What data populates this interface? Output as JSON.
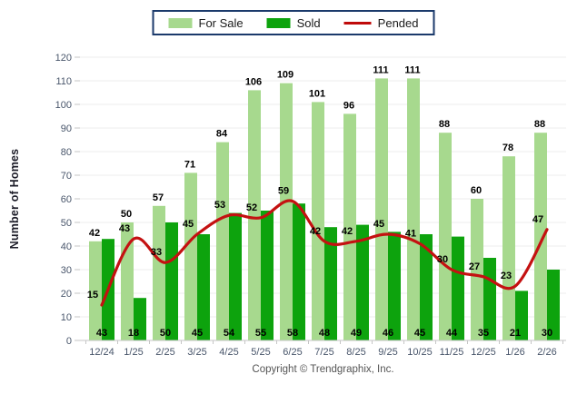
{
  "legend": {
    "items": [
      {
        "label": "For Sale",
        "swatch": "box",
        "color": "#a7d98e"
      },
      {
        "label": "Sold",
        "swatch": "box",
        "color": "#0da30d"
      },
      {
        "label": "Pended",
        "swatch": "line",
        "color": "#bf0a0a"
      }
    ]
  },
  "chart_data": {
    "type": "bar+line",
    "title": "",
    "xlabel": "",
    "ylabel": "Number of Homes",
    "ylim": [
      0,
      120
    ],
    "ytick_step": 10,
    "grid": true,
    "legend_position": "top",
    "categories": [
      "12/24",
      "1/25",
      "2/25",
      "3/25",
      "4/25",
      "5/25",
      "6/25",
      "7/25",
      "8/25",
      "9/25",
      "10/25",
      "11/25",
      "12/25",
      "1/26",
      "2/26"
    ],
    "series": [
      {
        "name": "For Sale",
        "type": "bar",
        "color": "#a7d98e",
        "label_position": "above-bar",
        "values": [
          42,
          50,
          57,
          71,
          84,
          106,
          109,
          101,
          96,
          111,
          111,
          88,
          60,
          78,
          88
        ]
      },
      {
        "name": "Sold",
        "type": "bar",
        "color": "#0da30d",
        "label_position": "bar-bottom",
        "values": [
          43,
          18,
          50,
          45,
          54,
          55,
          58,
          48,
          49,
          46,
          45,
          44,
          35,
          21,
          30
        ]
      },
      {
        "name": "Pended",
        "type": "line",
        "color": "#c41111",
        "label_position": "above-point",
        "values": [
          15,
          43,
          33,
          45,
          53,
          52,
          59,
          42,
          42,
          45,
          41,
          30,
          27,
          23,
          47
        ]
      }
    ],
    "colors": {
      "gridline": "#ececec",
      "axis_line": "#c6c6c6",
      "tick_label": "#49566b",
      "data_label": "#000000"
    }
  },
  "footer": {
    "copyright": "Copyright © Trendgraphix, Inc."
  }
}
